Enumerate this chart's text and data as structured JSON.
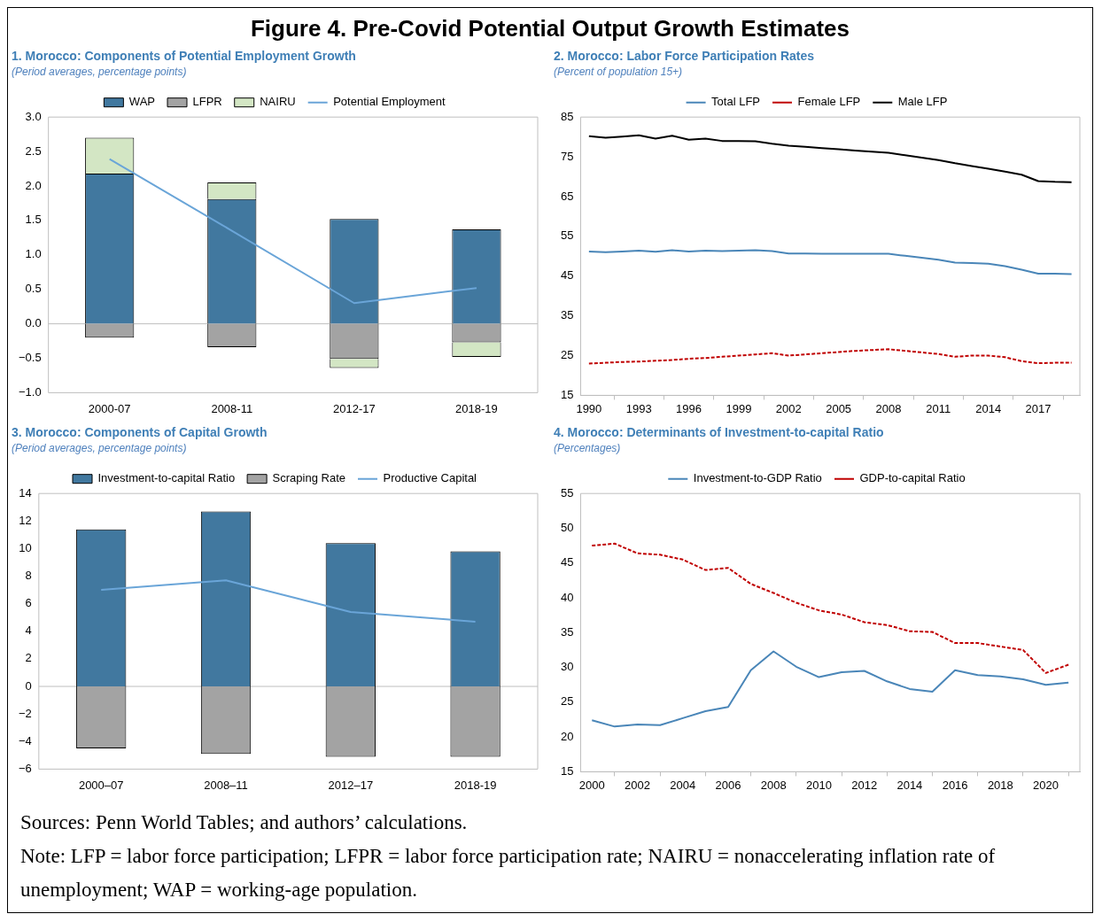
{
  "chart_data": [
    {
      "type": "bar",
      "title": "1. Morocco: Components of Potential Employment Growth",
      "subtitle": "(Period averages, percentage points)",
      "annotations": [
        "Figure 4. Pre-Covid Potential Output Growth Estimates"
      ],
      "stacked": true,
      "legend": "top",
      "grid": false,
      "marker": "none",
      "categories": [
        "2000-07",
        "2008-11",
        "2012-17",
        "2018-19"
      ],
      "ylim": [
        -1,
        3
      ],
      "yticks": [
        {
          "value": -1,
          "label": "−1.0"
        },
        {
          "value": -0.5,
          "label": "−0.5"
        },
        {
          "value": 0,
          "label": "0.0"
        },
        {
          "value": 0.5,
          "label": "0.5"
        },
        {
          "value": 1,
          "label": "1.0"
        },
        {
          "value": 1.5,
          "label": "1.5"
        },
        {
          "value": 2,
          "label": "2.0"
        },
        {
          "value": 2.5,
          "label": "2.5"
        },
        {
          "value": 3,
          "label": "3.0"
        }
      ],
      "ref_lines": [
        {
          "axis": "y",
          "value": 0,
          "color": "#bfbfbf"
        }
      ],
      "series": [
        {
          "name": "WAP",
          "color": "#41789f",
          "values": [
            2.18,
            1.81,
            1.52,
            1.37
          ]
        },
        {
          "name": "LFPR",
          "color": "#a3a3a3",
          "values": [
            -0.2,
            -0.34,
            -0.51,
            -0.27
          ]
        },
        {
          "name": "NAIRU",
          "color": "#d3e6c4",
          "values": [
            0.52,
            0.24,
            -0.13,
            -0.21
          ]
        },
        {
          "name": "Potential Employment",
          "type": "line",
          "color": "#6aa5d8",
          "values": [
            2.39,
            1.35,
            0.3,
            0.52
          ]
        }
      ]
    },
    {
      "type": "line",
      "title": "2. Morocco: Labor Force Participation Rates",
      "subtitle": "(Percent of population 15+)",
      "legend": "top",
      "grid": false,
      "marker": "none",
      "x": [
        1990,
        1991,
        1992,
        1993,
        1994,
        1995,
        1996,
        1997,
        1998,
        1999,
        2000,
        2001,
        2002,
        2003,
        2004,
        2005,
        2006,
        2007,
        2008,
        2009,
        2010,
        2011,
        2012,
        2013,
        2014,
        2015,
        2016,
        2017,
        2018,
        2019
      ],
      "xlim": [
        1989.5,
        2019.5
      ],
      "xticks": [
        1990,
        1993,
        1996,
        1999,
        2002,
        2005,
        2008,
        2011,
        2014,
        2017
      ],
      "ylim": [
        15,
        85
      ],
      "yticks": [
        15,
        25,
        35,
        45,
        55,
        65,
        75,
        85
      ],
      "series": [
        {
          "name": "Total LFP",
          "color": "#4a86b8",
          "values": [
            51.2,
            51.0,
            51.2,
            51.4,
            51.1,
            51.5,
            51.2,
            51.4,
            51.3,
            51.4,
            51.5,
            51.3,
            50.7,
            50.7,
            50.6,
            50.6,
            50.6,
            50.6,
            50.6,
            50.1,
            49.6,
            49.1,
            48.4,
            48.3,
            48.1,
            47.5,
            46.6,
            45.6,
            45.6,
            45.5
          ]
        },
        {
          "name": "Female LFP",
          "color": "#c00000",
          "line_style": "dashed",
          "values": [
            23.0,
            23.2,
            23.4,
            23.5,
            23.7,
            23.9,
            24.2,
            24.4,
            24.7,
            25.0,
            25.3,
            25.6,
            25.0,
            25.3,
            25.6,
            25.9,
            26.2,
            26.4,
            26.6,
            26.2,
            25.8,
            25.4,
            24.7,
            25.0,
            25.0,
            24.6,
            23.6,
            23.1,
            23.2,
            23.2
          ]
        },
        {
          "name": "Male LFP",
          "color": "#000000",
          "values": [
            80.2,
            79.8,
            80.1,
            80.4,
            79.6,
            80.3,
            79.3,
            79.6,
            79.0,
            79.0,
            78.9,
            78.3,
            77.8,
            77.5,
            77.2,
            76.9,
            76.6,
            76.3,
            76.0,
            75.4,
            74.8,
            74.2,
            73.4,
            72.7,
            72.0,
            71.3,
            70.5,
            68.9,
            68.7,
            68.6
          ]
        }
      ]
    },
    {
      "type": "bar",
      "title": "3. Morocco: Components of Capital Growth",
      "subtitle": "(Period averages, percentage points)",
      "stacked": true,
      "legend": "top",
      "grid": false,
      "marker": "none",
      "categories": [
        "2000–07",
        "2008–11",
        "2012–17",
        "2018-19"
      ],
      "ylim": [
        -6,
        14
      ],
      "yticks": [
        {
          "value": -6,
          "label": "−6"
        },
        {
          "value": -4,
          "label": "−4"
        },
        {
          "value": -2,
          "label": "−2"
        },
        0,
        2,
        4,
        6,
        8,
        10,
        12,
        14
      ],
      "ref_lines": [
        {
          "axis": "y",
          "value": 0,
          "color": "#bfbfbf"
        }
      ],
      "series": [
        {
          "name": "Investment-to-capital Ratio",
          "color": "#41789f",
          "values": [
            11.4,
            12.7,
            10.4,
            9.8
          ]
        },
        {
          "name": "Scraping Rate",
          "color": "#a3a3a3",
          "values": [
            -4.5,
            -4.9,
            -5.1,
            -5.1
          ]
        },
        {
          "name": "Productive Capital",
          "type": "line",
          "color": "#6aa5d8",
          "values": [
            7.0,
            7.7,
            5.4,
            4.7
          ]
        }
      ]
    },
    {
      "type": "line",
      "title": "4. Morocco: Determinants of Investment-to-capital Ratio",
      "subtitle": "(Percentages)",
      "legend": "top",
      "grid": false,
      "marker": "none",
      "annotations": [
        "Sources: Penn World Tables; and authors’ calculations.",
        "Note: LFP = labor force participation; LFPR = labor force participation rate; NAIRU = nonaccelerating inflation rate of unemployment; WAP = working-age population."
      ],
      "x": [
        2000,
        2001,
        2002,
        2003,
        2004,
        2005,
        2006,
        2007,
        2008,
        2009,
        2010,
        2011,
        2012,
        2013,
        2014,
        2015,
        2016,
        2017,
        2018,
        2019,
        2020,
        2021
      ],
      "xlim": [
        1999.5,
        2021.5
      ],
      "xticks": [
        2000,
        2002,
        2004,
        2006,
        2008,
        2010,
        2012,
        2014,
        2016,
        2018,
        2020
      ],
      "ylim": [
        15,
        55
      ],
      "yticks": [
        15,
        20,
        25,
        30,
        35,
        40,
        45,
        50,
        55
      ],
      "series": [
        {
          "name": "Investment-to-GDP Ratio",
          "color": "#4a86b8",
          "values": [
            22.4,
            21.5,
            21.8,
            21.7,
            22.7,
            23.7,
            24.3,
            29.6,
            32.3,
            30.1,
            28.6,
            29.3,
            29.5,
            28.0,
            26.9,
            26.5,
            29.6,
            28.9,
            28.7,
            28.3,
            27.5,
            27.8
          ]
        },
        {
          "name": "GDP-to-capital Ratio",
          "color": "#c00000",
          "line_style": "dashed",
          "values": [
            47.5,
            47.8,
            46.4,
            46.2,
            45.5,
            44.0,
            44.3,
            42.0,
            40.7,
            39.3,
            38.2,
            37.6,
            36.5,
            36.1,
            35.2,
            35.1,
            33.5,
            33.5,
            33.0,
            32.5,
            29.2,
            30.4
          ]
        }
      ]
    }
  ]
}
